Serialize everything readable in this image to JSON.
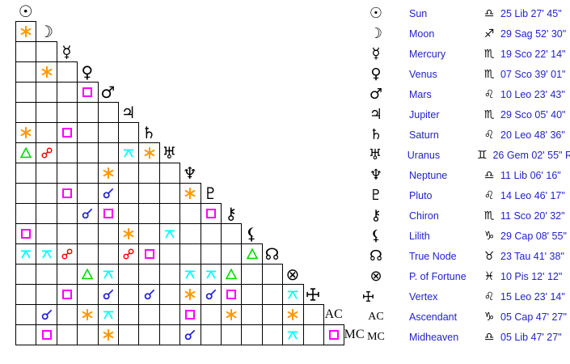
{
  "chart_data": {
    "type": "table",
    "title": "Astrological aspect grid with planetary positions",
    "aspect_legend": {
      "conjunction": {
        "label": "conjunction",
        "color": "#2222CC"
      },
      "sextile": {
        "label": "sextile",
        "color": "#FF9900"
      },
      "square": {
        "label": "square",
        "color": "#FF00FF"
      },
      "trine": {
        "label": "trine",
        "color": "#00DD00"
      },
      "opposition": {
        "label": "opposition",
        "color": "#FF0000"
      },
      "quincunx": {
        "label": "quincunx",
        "color": "#00FFFF"
      }
    },
    "planets": [
      {
        "slug": "sun",
        "name": "Sun",
        "glyph": "☉",
        "sign_glyph": "♎",
        "sign_abbr": "Lib",
        "position": "25 Lib 27' 45\"",
        "aspects": []
      },
      {
        "slug": "moon",
        "name": "Moon",
        "glyph": "☽",
        "sign_glyph": "♐",
        "sign_abbr": "Sag",
        "position": "29 Sag 52' 30\"",
        "aspects": [
          "sextile"
        ]
      },
      {
        "slug": "mercury",
        "name": "Mercury",
        "glyph": "☿",
        "sign_glyph": "♏",
        "sign_abbr": "Sco",
        "position": "19 Sco 22' 14\"",
        "aspects": [
          "",
          ""
        ]
      },
      {
        "slug": "venus",
        "name": "Venus",
        "glyph": "♀",
        "sign_glyph": "♏",
        "sign_abbr": "Sco",
        "position": "07 Sco 39' 01\"",
        "aspects": [
          "",
          "sextile",
          ""
        ]
      },
      {
        "slug": "mars",
        "name": "Mars",
        "glyph": "♂",
        "sign_glyph": "♌",
        "sign_abbr": "Leo",
        "position": "10 Leo 23' 43\"",
        "aspects": [
          "",
          "",
          "",
          "square"
        ]
      },
      {
        "slug": "jupiter",
        "name": "Jupiter",
        "glyph": "♃",
        "sign_glyph": "♏",
        "sign_abbr": "Sco",
        "position": "29 Sco 05' 40\"",
        "aspects": [
          "",
          "",
          "",
          "",
          ""
        ]
      },
      {
        "slug": "saturn",
        "name": "Saturn",
        "glyph": "♄",
        "sign_glyph": "♌",
        "sign_abbr": "Leo",
        "position": "20 Leo 48' 36\"",
        "aspects": [
          "sextile",
          "",
          "square",
          "",
          "",
          ""
        ]
      },
      {
        "slug": "uranus",
        "name": "Uranus",
        "glyph": "♅",
        "sign_glyph": "♊",
        "sign_abbr": "Gem",
        "position": "26 Gem 02' 55\" R",
        "aspects": [
          "trine",
          "opposition",
          "",
          "",
          "",
          "quincunx",
          "sextile"
        ]
      },
      {
        "slug": "neptune",
        "name": "Neptune",
        "glyph": "♆",
        "sign_glyph": "♎",
        "sign_abbr": "Lib",
        "position": "11 Lib 06' 16\"",
        "aspects": [
          "",
          "",
          "",
          "",
          "sextile",
          "",
          "",
          ""
        ]
      },
      {
        "slug": "pluto",
        "name": "Pluto",
        "glyph": "♇",
        "sign_glyph": "♌",
        "sign_abbr": "Leo",
        "position": "14 Leo 46' 17\"",
        "aspects": [
          "",
          "",
          "square",
          "",
          "conjunction",
          "",
          "",
          "",
          "sextile"
        ]
      },
      {
        "slug": "chiron",
        "name": "Chiron",
        "glyph": "⚷",
        "sign_glyph": "♏",
        "sign_abbr": "Sco",
        "position": "11 Sco 20' 32\"",
        "aspects": [
          "",
          "",
          "",
          "conjunction",
          "square",
          "",
          "",
          "",
          "",
          "square"
        ]
      },
      {
        "slug": "lilith",
        "name": "Lilith",
        "glyph": "⚸",
        "sign_glyph": "♑",
        "sign_abbr": "Cap",
        "position": "29 Cap 08' 55\"",
        "aspects": [
          "square",
          "",
          "",
          "",
          "",
          "sextile",
          "",
          "quincunx",
          "",
          "",
          ""
        ]
      },
      {
        "slug": "true-node",
        "name": "True Node",
        "glyph": "☊",
        "sign_glyph": "♉",
        "sign_abbr": "Tau",
        "position": "23 Tau 41' 38\"",
        "aspects": [
          "quincunx",
          "quincunx",
          "opposition",
          "",
          "",
          "opposition",
          "square",
          "",
          "",
          "",
          "",
          "trine"
        ]
      },
      {
        "slug": "part-of-fortune",
        "name": "P. of Fortune",
        "glyph": "⊗",
        "sign_glyph": "♓",
        "sign_abbr": "Pis",
        "position": "10 Pis 12' 12\"",
        "aspects": [
          "",
          "",
          "",
          "trine",
          "quincunx",
          "",
          "",
          "",
          "quincunx",
          "quincunx",
          "trine",
          "",
          ""
        ]
      },
      {
        "slug": "vertex",
        "name": "Vertex",
        "glyph": "vertex",
        "sign_glyph": "♌",
        "sign_abbr": "Leo",
        "position": "15 Leo 23' 14\"",
        "aspects": [
          "",
          "",
          "square",
          "",
          "conjunction",
          "",
          "conjunction",
          "",
          "sextile",
          "conjunction",
          "square",
          "",
          "",
          "quincunx"
        ]
      },
      {
        "slug": "ascendant",
        "name": "Ascendant",
        "glyph": "AC",
        "sign_glyph": "♑",
        "sign_abbr": "Cap",
        "position": "05 Cap 47' 27\"",
        "aspects": [
          "",
          "conjunction",
          "",
          "sextile",
          "quincunx",
          "",
          "",
          "",
          "square",
          "",
          "sextile",
          "",
          "",
          "sextile",
          ""
        ]
      },
      {
        "slug": "midheaven",
        "name": "Midheaven",
        "glyph": "MC",
        "sign_glyph": "♎",
        "sign_abbr": "Lib",
        "position": "05 Lib 47' 27\"",
        "aspects": [
          "",
          "square",
          "",
          "",
          "sextile",
          "",
          "",
          "",
          "conjunction",
          "",
          "",
          "",
          "",
          "quincunx",
          "",
          "square"
        ]
      }
    ]
  }
}
